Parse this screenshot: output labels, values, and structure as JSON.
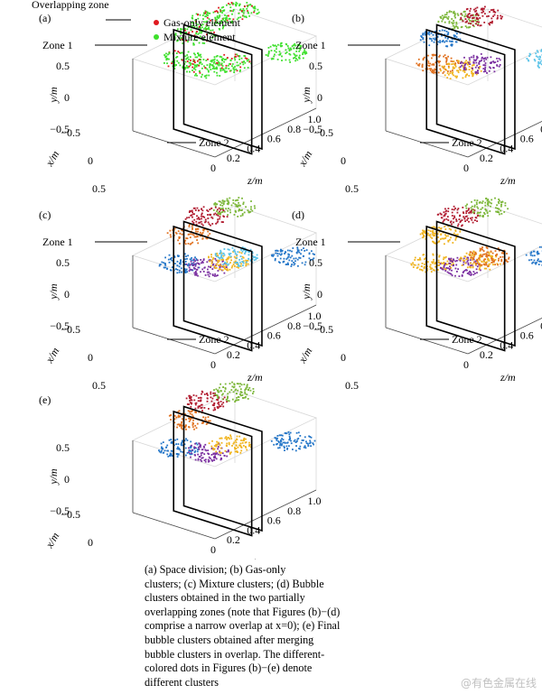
{
  "chart_data": [
    {
      "panel": "(a)",
      "type": "scatter",
      "xlabel": "z/m",
      "ylabel": "y/m",
      "zlabel": "x/m",
      "z_ticks": [
        "0",
        "0.2",
        "0.4",
        "0.6",
        "0.8",
        "1.0"
      ],
      "y_ticks": [
        "0.5",
        "0",
        "−0.5"
      ],
      "x_ticks": [
        "−0.5",
        "0",
        "0.5"
      ],
      "zlim": [
        0,
        1.0
      ],
      "ylim": [
        -0.5,
        0.5
      ],
      "xlim": [
        -0.5,
        0.5
      ],
      "overlapping_zone": [
        0.4,
        0.5
      ],
      "annotations": [
        "Overlapping zone",
        "Zone 1",
        "Zone 2"
      ],
      "legend": [
        {
          "label": "Gas-only element",
          "color": "#e0191f"
        },
        {
          "label": "Mixture element",
          "color": "#3ee02c"
        }
      ],
      "clusters": [
        {
          "z": 0.12,
          "y": 0.08,
          "x": -0.05,
          "color": "#3ee02c",
          "mixed": true
        },
        {
          "z": 0.35,
          "y": 0.2,
          "x": -0.2,
          "color": "#3ee02c",
          "mixed": true
        },
        {
          "z": 0.6,
          "y": 0.2,
          "x": -0.3,
          "color": "#3ee02c",
          "mixed": true
        },
        {
          "z": 0.9,
          "y": 0.1,
          "x": -0.35,
          "color": "#3ee02c",
          "mixed": true
        },
        {
          "z": 0.22,
          "y": -0.05,
          "x": 0.12,
          "color": "#3ee02c",
          "mixed": true
        },
        {
          "z": 0.42,
          "y": -0.1,
          "x": 0.15,
          "color": "#3ee02c",
          "mixed": true
        },
        {
          "z": 0.85,
          "y": -0.2,
          "x": 0.3,
          "color": "#3ee02c",
          "mixed": false
        }
      ]
    },
    {
      "panel": "(b)",
      "type": "scatter",
      "xlabel": "z/m",
      "ylabel": "y/m",
      "zlabel": "x/m",
      "z_ticks": [
        "0",
        "0.2",
        "0.4",
        "0.6",
        "0.8",
        "1.0"
      ],
      "y_ticks": [
        "0.5",
        "0",
        "−0.5"
      ],
      "x_ticks": [
        "−0.5",
        "0",
        "0.5"
      ],
      "annotations": [
        "Zone 1",
        "Zone 2"
      ],
      "clusters": [
        {
          "z": 0.1,
          "y": 0.05,
          "x": 0.0,
          "color": "#e0701e"
        },
        {
          "z": 0.3,
          "y": 0.2,
          "x": -0.2,
          "color": "#2476c8"
        },
        {
          "z": 0.55,
          "y": 0.25,
          "x": -0.3,
          "color": "#7bb638"
        },
        {
          "z": 0.85,
          "y": 0.05,
          "x": -0.4,
          "color": "#b01a2e"
        },
        {
          "z": 0.2,
          "y": -0.05,
          "x": 0.15,
          "color": "#f0b41e"
        },
        {
          "z": 0.4,
          "y": -0.1,
          "x": 0.15,
          "color": "#7a2fa0"
        },
        {
          "z": 0.9,
          "y": -0.3,
          "x": 0.35,
          "color": "#58c2e8"
        }
      ]
    },
    {
      "panel": "(c)",
      "type": "scatter",
      "xlabel": "z/m",
      "ylabel": "y/m",
      "zlabel": "x/m",
      "z_ticks": [
        "0",
        "0.2",
        "0.4",
        "0.6",
        "0.8",
        "1.0"
      ],
      "y_ticks": [
        "0.5",
        "0",
        "−0.5"
      ],
      "x_ticks": [
        "−0.5",
        "0",
        "0.5"
      ],
      "annotations": [
        "Zone 1",
        "Zone 2"
      ],
      "clusters": [
        {
          "z": 0.05,
          "y": 0.05,
          "x": 0.0,
          "color": "#2476c8"
        },
        {
          "z": 0.3,
          "y": 0.2,
          "x": -0.2,
          "color": "#e0701e"
        },
        {
          "z": 0.55,
          "y": 0.25,
          "x": -0.3,
          "color": "#b01a2e"
        },
        {
          "z": 0.9,
          "y": 0.1,
          "x": -0.4,
          "color": "#7bb638"
        },
        {
          "z": 0.2,
          "y": -0.05,
          "x": 0.15,
          "color": "#7a2fa0"
        },
        {
          "z": 0.4,
          "y": -0.1,
          "x": 0.15,
          "color": "#f0b41e"
        },
        {
          "z": 0.48,
          "y": -0.1,
          "x": 0.15,
          "color": "#58c2e8"
        },
        {
          "z": 0.88,
          "y": -0.3,
          "x": 0.35,
          "color": "#2476c8"
        }
      ]
    },
    {
      "panel": "(d)",
      "type": "scatter",
      "xlabel": "z/m",
      "ylabel": "y/m",
      "zlabel": "x/m",
      "z_ticks": [
        "0",
        "0.2",
        "0.4",
        "0.6",
        "0.8",
        "1.0"
      ],
      "y_ticks": [
        "0.5",
        "0",
        "−0.5"
      ],
      "x_ticks": [
        "−0.5",
        "0",
        "0.5"
      ],
      "annotations": [
        "Zone 1",
        "Zone 2"
      ],
      "clusters": [
        {
          "z": 0.05,
          "y": 0.05,
          "x": 0.0,
          "color": "#f0b41e"
        },
        {
          "z": 0.3,
          "y": 0.2,
          "x": -0.2,
          "color": "#f0b41e"
        },
        {
          "z": 0.55,
          "y": 0.25,
          "x": -0.3,
          "color": "#b01a2e"
        },
        {
          "z": 0.9,
          "y": 0.1,
          "x": -0.4,
          "color": "#7bb638"
        },
        {
          "z": 0.2,
          "y": -0.05,
          "x": 0.15,
          "color": "#7a2fa0"
        },
        {
          "z": 0.4,
          "y": -0.1,
          "x": 0.15,
          "color": "#f0b41e"
        },
        {
          "z": 0.48,
          "y": -0.1,
          "x": 0.15,
          "color": "#e0701e"
        },
        {
          "z": 0.88,
          "y": -0.3,
          "x": 0.35,
          "color": "#2476c8"
        }
      ]
    },
    {
      "panel": "(e)",
      "type": "scatter",
      "xlabel": "z/m",
      "ylabel": "y/m",
      "zlabel": "x/m",
      "z_ticks": [
        "0",
        "0.2",
        "0.4",
        "0.6",
        "0.8",
        "1.0"
      ],
      "y_ticks": [
        "0.5",
        "0",
        "−0.5"
      ],
      "x_ticks": [
        "−0.5",
        "0",
        "0.5"
      ],
      "clusters": [
        {
          "z": 0.05,
          "y": 0.05,
          "x": 0.0,
          "color": "#2476c8"
        },
        {
          "z": 0.3,
          "y": 0.2,
          "x": -0.2,
          "color": "#e0701e"
        },
        {
          "z": 0.55,
          "y": 0.25,
          "x": -0.3,
          "color": "#b01a2e"
        },
        {
          "z": 0.9,
          "y": 0.1,
          "x": -0.4,
          "color": "#7bb638"
        },
        {
          "z": 0.2,
          "y": -0.05,
          "x": 0.15,
          "color": "#7a2fa0"
        },
        {
          "z": 0.42,
          "y": -0.1,
          "x": 0.15,
          "color": "#f0b41e"
        },
        {
          "z": 0.88,
          "y": -0.3,
          "x": 0.35,
          "color": "#2476c8"
        }
      ]
    }
  ],
  "caption": [
    "(a) Space division; (b) Gas-only",
    "clusters; (c) Mixture clusters; (d) Bubble",
    "clusters obtained in the two partially",
    "overlapping zones (note that Figures (b)−(d)",
    "comprise a narrow overlap at x=0); (e) Final",
    "bubble clusters obtained after merging",
    "bubble clusters in overlap. The different-",
    "colored dots in Figures (b)−(e) denote",
    "different clusters"
  ],
  "watermark": "@有色金属在线"
}
